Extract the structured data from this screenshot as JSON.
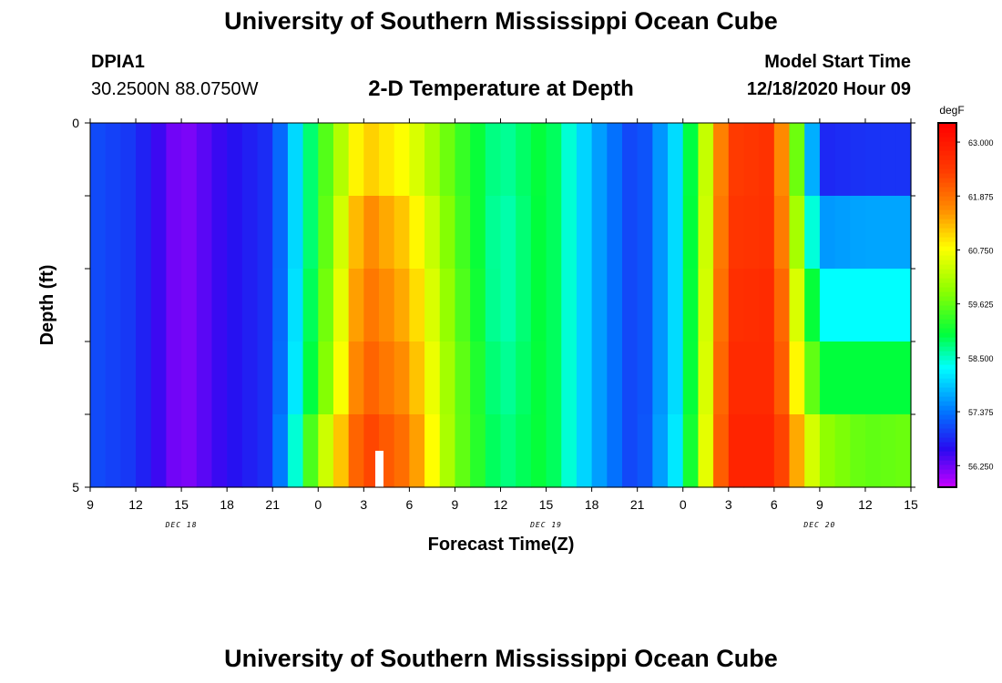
{
  "page": {
    "title": "University of Southern Mississippi Ocean Cube",
    "footer_title": "University of Southern Mississippi Ocean Cube",
    "station": "DPIA1",
    "coords": "30.2500N 88.0750W",
    "plot_title": "2-D Temperature at Depth",
    "start_label": "Model Start Time",
    "start_value": "12/18/2020 Hour 09"
  },
  "chart_data": {
    "type": "heatmap",
    "title": "2-D Temperature at Depth",
    "xlabel": "Forecast Time(Z)",
    "ylabel": "Depth (ft)",
    "x_tick_labels": [
      "9",
      "12",
      "15",
      "18",
      "21",
      "0",
      "3",
      "6",
      "9",
      "12",
      "15",
      "18",
      "21",
      "0",
      "3",
      "6",
      "9",
      "12",
      "15"
    ],
    "date_labels": [
      "DEC 18",
      "DEC 19",
      "DEC 20"
    ],
    "y_tick_labels": [
      "0",
      "5"
    ],
    "xlim": [
      0,
      54
    ],
    "ylim": [
      0,
      5
    ],
    "colorbar": {
      "unit": "degF",
      "tick_labels": [
        "63.000",
        "61.875",
        "60.750",
        "59.625",
        "58.500",
        "57.375",
        "56.250"
      ],
      "ticks": [
        63.0,
        61.875,
        60.75,
        59.625,
        58.5,
        57.375,
        56.25
      ],
      "range": [
        55.8,
        63.4
      ]
    },
    "depth_layers": [
      0,
      1,
      2,
      3,
      4,
      5
    ],
    "forecast_hours": [
      0,
      3,
      6,
      9,
      12,
      15,
      18,
      21,
      24,
      27,
      30,
      33,
      36,
      39,
      42,
      45,
      48,
      51,
      54
    ],
    "temperature_by_layer": [
      {
        "depth": 0,
        "values": [
          57.1,
          56.9,
          56.1,
          56.6,
          56.9,
          59.2,
          61.2,
          60.7,
          59.5,
          58.6,
          59.1,
          57.8,
          56.9,
          58.3,
          62.4,
          62.6,
          56.8,
          56.9,
          56.9
        ]
      },
      {
        "depth": 1,
        "values": [
          57.1,
          56.9,
          56.1,
          56.6,
          56.9,
          59.2,
          61.7,
          61.1,
          59.6,
          58.5,
          59.1,
          57.8,
          56.9,
          58.3,
          62.5,
          62.6,
          57.6,
          57.7,
          57.7
        ]
      },
      {
        "depth": 2,
        "values": [
          57.1,
          56.9,
          56.1,
          56.6,
          56.9,
          59.3,
          61.9,
          61.3,
          59.7,
          58.5,
          59.1,
          57.8,
          56.9,
          58.3,
          62.6,
          62.7,
          58.3,
          58.3,
          58.3
        ]
      },
      {
        "depth": 3,
        "values": [
          57.1,
          56.9,
          56.1,
          56.6,
          56.9,
          59.4,
          62.1,
          61.5,
          59.8,
          58.6,
          59.1,
          57.8,
          56.9,
          58.3,
          62.7,
          62.7,
          59.0,
          59.0,
          59.0
        ]
      },
      {
        "depth": 4,
        "values": [
          57.1,
          56.9,
          56.1,
          56.6,
          56.9,
          60.0,
          62.4,
          61.8,
          59.8,
          58.7,
          59.1,
          57.8,
          56.9,
          58.4,
          62.8,
          62.8,
          60.0,
          59.6,
          59.7
        ]
      }
    ]
  }
}
